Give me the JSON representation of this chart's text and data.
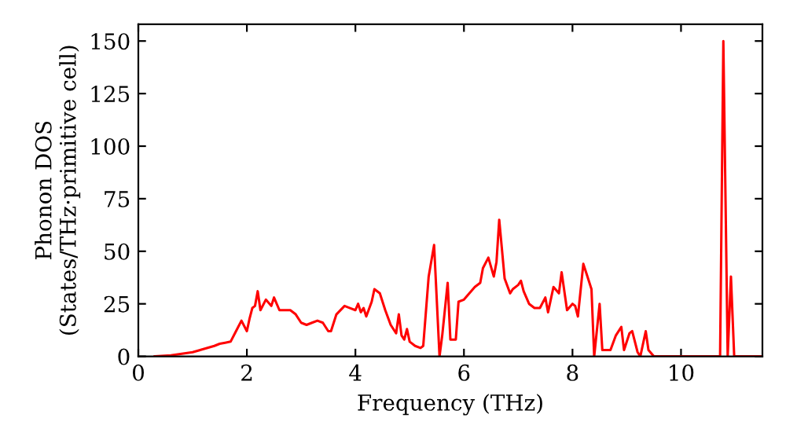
{
  "chart_data": {
    "type": "line",
    "xlabel": "Frequency (THz)",
    "ylabel": "Phonon DOS\n(States/THz·primitive cell)",
    "xlim": [
      0,
      11.5
    ],
    "ylim": [
      0,
      158
    ],
    "xticks": [
      0,
      2,
      4,
      6,
      8,
      10
    ],
    "yticks": [
      0,
      25,
      50,
      75,
      100,
      125,
      150
    ],
    "grid": false,
    "series": [
      {
        "color": "#ff0000",
        "x": [
          0.3,
          0.6,
          1.0,
          1.2,
          1.4,
          1.5,
          1.6,
          1.7,
          1.8,
          1.9,
          2.0,
          2.05,
          2.1,
          2.15,
          2.2,
          2.25,
          2.35,
          2.45,
          2.5,
          2.6,
          2.7,
          2.8,
          2.9,
          3.0,
          3.1,
          3.2,
          3.3,
          3.4,
          3.5,
          3.55,
          3.65,
          3.8,
          3.9,
          4.0,
          4.05,
          4.1,
          4.15,
          4.2,
          4.3,
          4.35,
          4.45,
          4.55,
          4.65,
          4.75,
          4.8,
          4.85,
          4.9,
          4.95,
          5.0,
          5.1,
          5.2,
          5.25,
          5.35,
          5.45,
          5.55,
          5.6,
          5.7,
          5.75,
          5.85,
          5.9,
          6.0,
          6.1,
          6.2,
          6.3,
          6.35,
          6.45,
          6.55,
          6.6,
          6.65,
          6.75,
          6.85,
          6.9,
          7.0,
          7.05,
          7.1,
          7.2,
          7.3,
          7.4,
          7.5,
          7.55,
          7.65,
          7.75,
          7.8,
          7.9,
          8.0,
          8.05,
          8.1,
          8.2,
          8.25,
          8.35,
          8.4,
          8.5,
          8.55,
          8.7,
          8.8,
          8.9,
          8.95,
          9.05,
          9.1,
          9.2,
          9.25,
          9.35,
          9.4,
          9.5,
          10.72,
          10.78,
          10.86,
          10.92,
          10.98,
          11.5
        ],
        "values": [
          0,
          0.5,
          2,
          3.5,
          5,
          6,
          6.5,
          7,
          12,
          17,
          12,
          18,
          23,
          24,
          31,
          22,
          27,
          24,
          28,
          22,
          22,
          22,
          20,
          16,
          15,
          16,
          17,
          16,
          12,
          12,
          20,
          24,
          23,
          22,
          25,
          21,
          23,
          19,
          26,
          32,
          30,
          22,
          15,
          11,
          20,
          10,
          8,
          13,
          7,
          5,
          4,
          5,
          38,
          53,
          0,
          10,
          35,
          8,
          8,
          26,
          27,
          30,
          33,
          35,
          42,
          47,
          38,
          45,
          65,
          37,
          30,
          32,
          34,
          36,
          31,
          25,
          23,
          23,
          28,
          21,
          33,
          30,
          40,
          22,
          25,
          24,
          19,
          44,
          40,
          32,
          0,
          25,
          3,
          3,
          10,
          14,
          3,
          11,
          12,
          2,
          0,
          12,
          3,
          0,
          0,
          150,
          0,
          38,
          0,
          0
        ]
      }
    ]
  }
}
